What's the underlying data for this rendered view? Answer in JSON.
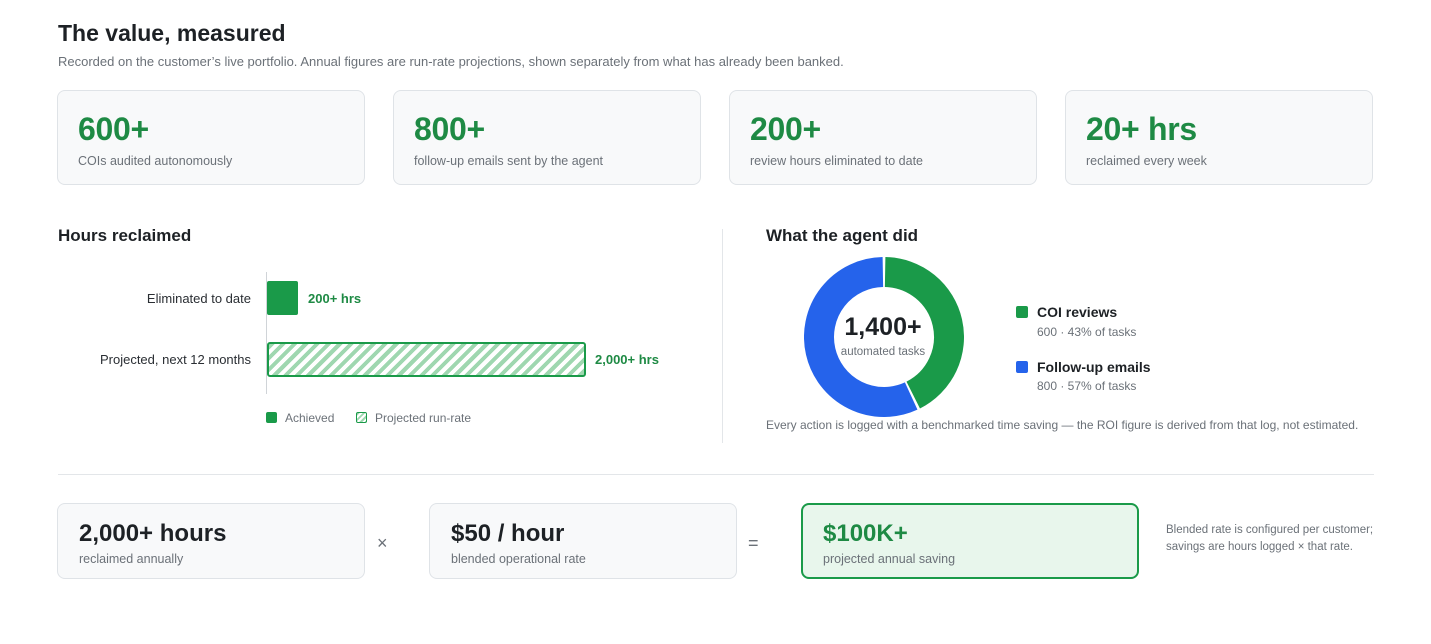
{
  "header": {
    "title": "The value, measured",
    "subtitle": "Recorded on the customer’s live portfolio. Annual figures are run-rate projections, shown separately from what has already been banked."
  },
  "stats": [
    {
      "value": "600+",
      "label": "COIs audited autonomously"
    },
    {
      "value": "800+",
      "label": "follow-up emails sent by the agent"
    },
    {
      "value": "200+",
      "label": "review hours eliminated to date"
    },
    {
      "value": "20+ hrs",
      "label": "reclaimed every week"
    }
  ],
  "hours_reclaimed": {
    "title": "Hours reclaimed",
    "rows": [
      {
        "label": "Eliminated to date",
        "value_label": "200+ hrs"
      },
      {
        "label": "Projected, next 12 months",
        "value_label": "2,000+ hrs"
      }
    ],
    "legend": {
      "achieved": "Achieved",
      "projected": "Projected run-rate"
    }
  },
  "agent_did": {
    "title": "What the agent did",
    "center_value": "1,400+",
    "center_label": "automated tasks",
    "items": [
      {
        "name": "COI reviews",
        "detail": "600 · 43% of tasks"
      },
      {
        "name": "Follow-up emails",
        "detail": "800 · 57% of tasks"
      }
    ],
    "note": "Every action is logged with a benchmarked time saving — the ROI figure is derived from that log, not estimated."
  },
  "calc": {
    "hours": {
      "value": "2,000+ hours",
      "label": "reclaimed annually"
    },
    "times": "×",
    "rate": {
      "value": "$50 / hour",
      "label": "blended operational rate"
    },
    "equals": "=",
    "result": {
      "value": "$100K+",
      "label": "projected annual saving"
    },
    "side_note": "Blended rate is configured per customer; savings are hours logged × that rate."
  },
  "chart_data": [
    {
      "type": "bar",
      "title": "Hours reclaimed",
      "categories": [
        "Eliminated to date",
        "Projected, next 12 months"
      ],
      "values": [
        200,
        2000
      ],
      "data_labels": [
        "200+ hrs",
        "2,000+ hrs"
      ],
      "legend": [
        "Achieved",
        "Projected run-rate"
      ],
      "colors": {
        "achieved": "#1a9a49",
        "projected": "#9fd7b0"
      }
    },
    {
      "type": "pie",
      "title": "What the agent did",
      "categories": [
        "COI reviews",
        "Follow-up emails"
      ],
      "values": [
        600,
        800
      ],
      "percent": [
        43,
        57
      ],
      "colors": [
        "#1a9a49",
        "#2563eb"
      ]
    }
  ],
  "colors": {
    "accent_green": "#1e8a44",
    "blue": "#2563eb"
  }
}
